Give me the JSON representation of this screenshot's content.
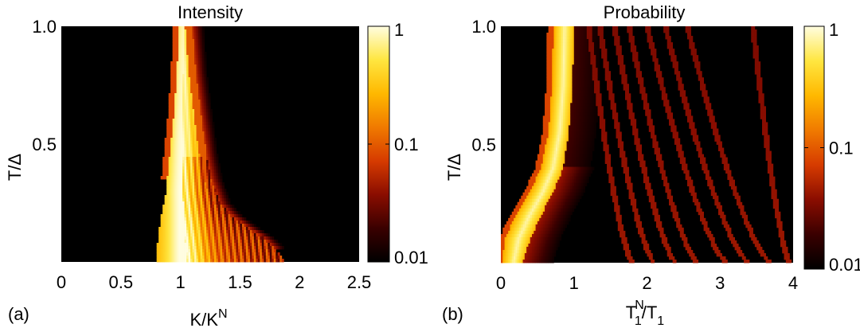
{
  "colormap": {
    "stops": [
      "#000000",
      "#3a0000",
      "#8a0d00",
      "#d63b00",
      "#f07a00",
      "#ffb800",
      "#ffe640",
      "#fffde0"
    ],
    "tick_labels": [
      "1",
      "0.1",
      "0.01"
    ],
    "scale": "log"
  },
  "chart_data": [
    {
      "type": "heatmap",
      "panel_label": "(a)",
      "title": "Intensity",
      "xlabel": "K/K",
      "xlabel_sup": "N",
      "ylabel": "T/Δ",
      "xlim": [
        0,
        2.5
      ],
      "ylim": [
        0,
        1.0
      ],
      "xticks": [
        0,
        0.5,
        1,
        1.5,
        2,
        2.5
      ],
      "xtick_labels": [
        "0",
        "0.5",
        "1",
        "1.5",
        "2",
        "2.5"
      ],
      "yticks": [
        0.5,
        1.0
      ],
      "ytick_labels": [
        "0.5",
        "1.0"
      ],
      "color_range": [
        0.01,
        1
      ],
      "features": {
        "central_peak": [
          [
            0.0,
            1.05
          ],
          [
            0.1,
            1.04
          ],
          [
            0.3,
            1.02
          ],
          [
            0.6,
            1.02
          ],
          [
            1.0,
            1.03
          ]
        ],
        "left_edge": [
          [
            0.0,
            0.8
          ],
          [
            0.1,
            0.81
          ],
          [
            0.2,
            0.84
          ],
          [
            0.3,
            0.88
          ],
          [
            0.45,
            0.91
          ],
          [
            0.6,
            0.94
          ],
          [
            0.8,
            0.97
          ],
          [
            1.0,
            0.99
          ]
        ],
        "right_edge": [
          [
            0.0,
            1.88
          ],
          [
            0.05,
            1.8
          ],
          [
            0.1,
            1.7
          ],
          [
            0.15,
            1.55
          ],
          [
            0.2,
            1.42
          ],
          [
            0.25,
            1.33
          ],
          [
            0.35,
            1.26
          ],
          [
            0.45,
            1.22
          ],
          [
            0.6,
            1.18
          ],
          [
            0.8,
            1.13
          ],
          [
            1.0,
            1.1
          ]
        ],
        "stripe_count": 9,
        "stripe_spacing": 0.055
      }
    },
    {
      "type": "heatmap",
      "panel_label": "(b)",
      "title": "Probability",
      "xlabel": "T",
      "xlabel_sub1": "1",
      "xlabel_sup1": "N",
      "xlabel_mid": "/T",
      "xlabel_sub2": "1",
      "ylabel": "T/Δ",
      "xlim": [
        0,
        4
      ],
      "ylim": [
        0,
        1.0
      ],
      "xticks": [
        0,
        1,
        2,
        3,
        4
      ],
      "xtick_labels": [
        "0",
        "1",
        "2",
        "3",
        "4"
      ],
      "yticks": [
        0.5,
        1.0
      ],
      "ytick_labels": [
        "0.5",
        "1.0"
      ],
      "color_range": [
        0.01,
        1
      ],
      "features": {
        "main_band_left": [
          [
            0.0,
            0.02
          ],
          [
            0.1,
            0.05
          ],
          [
            0.2,
            0.2
          ],
          [
            0.3,
            0.4
          ],
          [
            0.4,
            0.55
          ],
          [
            0.55,
            0.65
          ],
          [
            0.75,
            0.7
          ],
          [
            1.0,
            0.72
          ]
        ],
        "main_band_right": [
          [
            0.0,
            0.3
          ],
          [
            0.1,
            0.4
          ],
          [
            0.2,
            0.55
          ],
          [
            0.3,
            0.72
          ],
          [
            0.4,
            0.85
          ],
          [
            0.55,
            0.93
          ],
          [
            0.75,
            0.98
          ],
          [
            1.0,
            1.0
          ]
        ],
        "faint_line_x_at_top": [
          1.2,
          1.35,
          1.55,
          1.75,
          2.0,
          2.25,
          2.55,
          3.45
        ],
        "faint_line_x_at_bottom": [
          1.8,
          2.1,
          2.4,
          2.7,
          3.1,
          3.4,
          3.7,
          3.95
        ]
      }
    }
  ]
}
